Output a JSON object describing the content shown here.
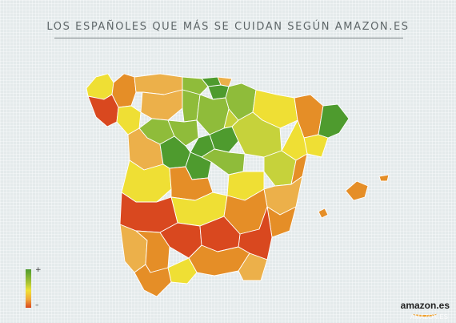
{
  "title": "LOS ESPAÑOLES QUE MÁS SE CUIDAN SEGÚN AMAZON.ES",
  "legend": {
    "top_label": "+",
    "bottom_label": "–",
    "colors": [
      "#4e9b2e",
      "#a9c434",
      "#f0e236",
      "#f0a93a",
      "#d9481f"
    ]
  },
  "logo": {
    "text": "amazon.es",
    "watermark": "AMAZON.ES"
  },
  "colors": {
    "dark_green": "#4e9b2e",
    "light_green": "#8fbc3a",
    "yellow_green": "#c6d23b",
    "yellow": "#efdf34",
    "light_orange": "#ecb04a",
    "orange": "#e58e27",
    "red_orange": "#d9481f",
    "background": "#e4eaeb"
  }
}
